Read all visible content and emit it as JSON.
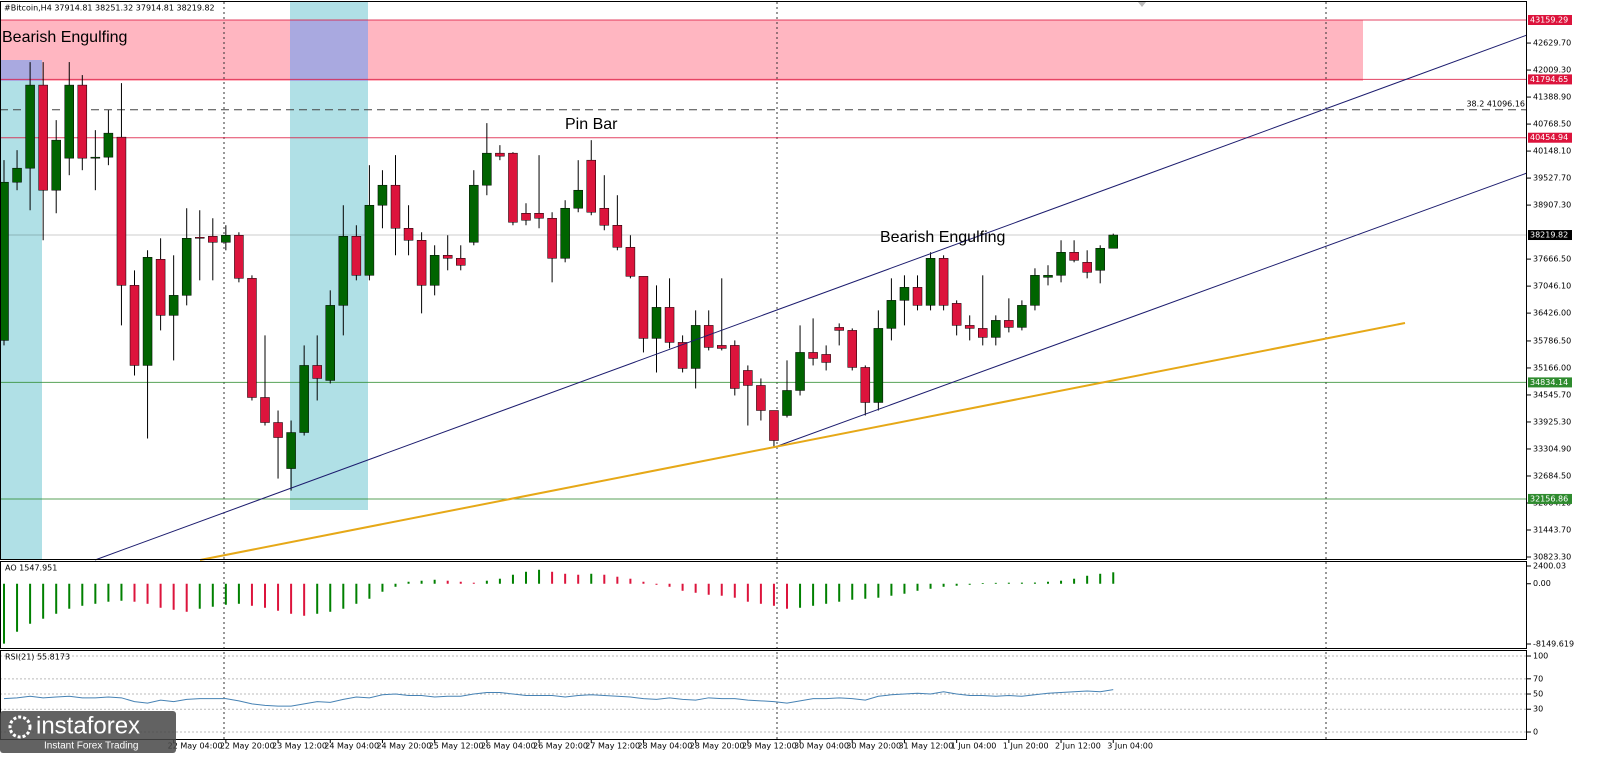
{
  "header": "#Bitcoin,H4  37914.81 38251.32 37914.81 38219.82",
  "watermark": {
    "brand": "instaforex",
    "tagline": "Instant Forex Trading"
  },
  "chart_data": [
    {
      "type": "candlestick",
      "categories": [
        null,
        null,
        null,
        null,
        null,
        null,
        null,
        null,
        null,
        null,
        null,
        null,
        null,
        "22 May 04:00",
        null,
        null,
        null,
        "22 May 20:00",
        null,
        null,
        null,
        "23 May 12:00",
        null,
        null,
        null,
        "24 May 04:00",
        null,
        null,
        null,
        "24 May 20:00",
        null,
        null,
        null,
        "25 May 12:00",
        null,
        null,
        null,
        "26 May 04:00",
        null,
        null,
        null,
        "26 May 20:00",
        null,
        null,
        null,
        "27 May 12:00",
        null,
        null,
        null,
        "28 May 04:00",
        null,
        null,
        null,
        "28 May 20:00",
        null,
        null,
        null,
        "29 May 12:00",
        null,
        null,
        null,
        "30 May 04:00",
        null,
        null,
        null,
        "30 May 20:00",
        null,
        null,
        null,
        "31 May 12:00",
        null,
        null,
        null,
        "1 Jun 04:00",
        null,
        null,
        null,
        "1 Jun 20:00",
        null,
        null,
        null,
        "2 Jun 12:00",
        null,
        null,
        null,
        "3 Jun 04:00"
      ],
      "open": [
        35799,
        39433,
        39755,
        41664,
        39249,
        39985,
        41664,
        39985,
        40008,
        40468,
        37064,
        35224,
        37662,
        36374,
        36834,
        38168,
        38191,
        38053,
        38214,
        37225,
        34488,
        33913,
        32855,
        33683,
        35224,
        34879,
        36604,
        38191,
        37294,
        38904,
        39364,
        38375,
        38099,
        37064,
        37754,
        37685,
        38053,
        39364,
        40100,
        40100,
        38720,
        38720,
        38605,
        37685,
        38835,
        39939,
        38835,
        38444,
        37938,
        37271,
        35845,
        36558,
        35753,
        35155,
        36144,
        35684,
        35684,
        35109,
        34764,
        34189,
        34074,
        34649,
        35523,
        35477,
        36098,
        36029,
        35178,
        34373,
        36075,
        36719,
        37018,
        36604,
        37685,
        36650,
        36144,
        36075,
        35868,
        36259,
        36098,
        36604,
        37248,
        37294,
        37823,
        37593,
        37409,
        37914.81
      ],
      "high": [
        39939,
        40169,
        42193,
        42193,
        40859,
        42193,
        41894,
        40629,
        41089,
        41710,
        37409,
        37869,
        38145,
        37754,
        38835,
        38789,
        38605,
        38444,
        38283,
        37294,
        35914,
        34189,
        33959,
        35684,
        35914,
        36949,
        38904,
        38444,
        39824,
        39709,
        40054,
        38904,
        38283,
        37984,
        38214,
        37984,
        39709,
        40790,
        40284,
        40123,
        38950,
        40054,
        38743,
        39019,
        39939,
        40399,
        39594,
        39134,
        38214,
        37271,
        37064,
        37225,
        35914,
        36489,
        36489,
        37225,
        35799,
        35224,
        34925,
        34189,
        35339,
        36144,
        36305,
        35684,
        36190,
        36075,
        35224,
        36489,
        37225,
        37294,
        37294,
        37823,
        37754,
        36719,
        36374,
        37294,
        36374,
        36765,
        36719,
        37455,
        37524,
        38099,
        38099,
        37869,
        37984,
        38251.32
      ],
      "low": [
        35684,
        39249,
        38789,
        38099,
        38720,
        39594,
        39709,
        39249,
        39824,
        36144,
        34994,
        33545,
        36029,
        35339,
        36604,
        37179,
        37179,
        37869,
        37133,
        34419,
        33844,
        32625,
        32349,
        33614,
        34419,
        34810,
        35914,
        37179,
        37179,
        38375,
        37754,
        37754,
        36420,
        36834,
        37409,
        37409,
        37984,
        39134,
        39939,
        38444,
        38444,
        38375,
        37133,
        37593,
        38743,
        38674,
        38329,
        37869,
        37225,
        35523,
        35063,
        35615,
        35063,
        34695,
        35569,
        35569,
        34534,
        33844,
        33959,
        33338,
        34028,
        34534,
        35224,
        35109,
        35684,
        35109,
        34074,
        34189,
        35799,
        36144,
        36489,
        36489,
        36489,
        35914,
        35799,
        35684,
        35684,
        35983,
        36029,
        36489,
        37064,
        37133,
        37593,
        37225,
        37110,
        37914.81
      ],
      "close": [
        39433,
        39755,
        41664,
        39249,
        40399,
        41664,
        39985,
        40008,
        40560,
        37064,
        35224,
        37708,
        36374,
        36834,
        38145,
        38145,
        38053,
        38214,
        37225,
        34488,
        33913,
        33568,
        33683,
        35224,
        34925,
        36604,
        38191,
        37294,
        38904,
        39364,
        38375,
        38099,
        37064,
        37754,
        37685,
        37524,
        39364,
        40100,
        40031,
        38513,
        38559,
        38605,
        37685,
        38835,
        39249,
        38743,
        38444,
        37938,
        37271,
        35845,
        36558,
        35753,
        35155,
        36144,
        35638,
        35615,
        34695,
        34764,
        34189,
        33499,
        34649,
        35523,
        35385,
        35293,
        36029,
        35178,
        34373,
        36075,
        36719,
        37018,
        36604,
        37685,
        36604,
        36144,
        36075,
        35868,
        36259,
        36098,
        36604,
        37294,
        37294,
        37823,
        37639,
        37363,
        37915,
        38219.82
      ],
      "up_color": "#006400",
      "down_color": "#dc143c",
      "ylim": [
        30754.4,
        43618.7
      ],
      "yticks": [
        {
          "value": 42629.7,
          "label": "42629.70"
        },
        {
          "value": 42009.3,
          "label": "42009.30"
        },
        {
          "value": 41388.9,
          "label": "41388.90"
        },
        {
          "value": 40768.5,
          "label": "40768.50"
        },
        {
          "value": 40148.1,
          "label": "40148.10"
        },
        {
          "value": 39527.7,
          "label": "39527.70"
        },
        {
          "value": 38907.3,
          "label": "38907.30"
        },
        {
          "value": 37666.5,
          "label": "37666.50"
        },
        {
          "value": 37046.1,
          "label": "37046.10"
        },
        {
          "value": 36426,
          "label": "36426.00"
        },
        {
          "value": 35786.5,
          "label": "35786.50"
        },
        {
          "value": 35166,
          "label": "35166.00"
        },
        {
          "value": 34545.7,
          "label": "34545.70"
        },
        {
          "value": 33925.3,
          "label": "33925.30"
        },
        {
          "value": 33304.9,
          "label": "33304.90"
        },
        {
          "value": 32684.5,
          "label": "32684.50"
        },
        {
          "value": 32064.1,
          "label": "32064.10"
        },
        {
          "value": 31443.7,
          "label": "31443.70"
        },
        {
          "value": 30823.3,
          "label": "30823.30"
        }
      ],
      "levels": [
        {
          "value": 43159.29,
          "color": "#dc143c"
        },
        {
          "value": 41794.65,
          "color": "#dc143c"
        },
        {
          "value": 40454.94,
          "color": "#dc143c"
        },
        {
          "value": 38219.82,
          "color": "#000000"
        },
        {
          "value": 34834.14,
          "color": "#2e8b2e"
        },
        {
          "value": 32156.86,
          "color": "#2e8b2e"
        }
      ],
      "fib": {
        "value": 41096.16,
        "label": "38.2 41096.16",
        "color": "#444444"
      },
      "annotations": [
        "Bearish Engulfing",
        "Pin Bar",
        "Bearish Engulfing"
      ]
    },
    {
      "type": "bar",
      "title": "AO 1547.951",
      "values": [
        -8100,
        -6490,
        -5410,
        -4730,
        -4060,
        -3380,
        -2980,
        -2710,
        -2430,
        -2300,
        -2430,
        -2710,
        -3250,
        -3520,
        -3790,
        -3380,
        -3110,
        -2840,
        -2710,
        -2980,
        -3250,
        -3650,
        -4060,
        -4330,
        -4060,
        -3790,
        -3380,
        -2710,
        -2030,
        -1080,
        -410,
        270,
        410,
        540,
        410,
        270,
        140,
        410,
        680,
        1220,
        1620,
        1890,
        1620,
        1350,
        1220,
        1350,
        1220,
        950,
        680,
        270,
        -140,
        -410,
        -950,
        -1220,
        -1490,
        -1620,
        -1890,
        -2430,
        -2710,
        -2980,
        -3380,
        -3250,
        -2980,
        -2710,
        -2430,
        -2160,
        -2030,
        -1890,
        -1620,
        -1350,
        -950,
        -680,
        -410,
        -270,
        -140,
        100,
        120,
        140,
        150,
        160,
        270,
        410,
        680,
        1080,
        1350,
        1547.951
      ],
      "up_color": "#008000",
      "down_color": "#dc143c",
      "ylim": [
        -8690.6,
        2941
      ],
      "yticks": [
        2400.03,
        {
          "value": 0,
          "label": "0.00"
        },
        -8149.619
      ]
    },
    {
      "type": "line",
      "title": "RSI(21) 55.8173",
      "values": [
        44,
        45,
        47,
        45,
        46,
        47,
        45,
        45,
        46,
        45,
        40,
        38,
        42,
        40,
        43,
        44,
        44,
        44,
        41,
        37,
        35,
        34,
        34,
        37,
        40,
        39,
        43,
        46,
        45,
        49,
        50,
        48,
        48,
        46,
        47,
        47,
        50,
        52,
        52,
        50,
        48,
        48,
        48,
        46,
        48,
        49,
        48,
        47,
        46,
        44,
        43,
        45,
        43,
        42,
        45,
        44,
        44,
        42,
        41,
        40,
        38,
        41,
        44,
        44,
        45,
        44,
        42,
        47,
        49,
        50,
        51,
        50,
        53,
        50,
        48,
        48,
        47,
        48,
        47,
        49,
        51,
        52,
        53,
        54,
        53,
        55.8173
      ],
      "color": "#4682b4",
      "ylim": [
        -10.5,
        106.6
      ],
      "yticks": [
        100,
        70,
        50,
        30,
        0
      ],
      "grid": true
    }
  ]
}
